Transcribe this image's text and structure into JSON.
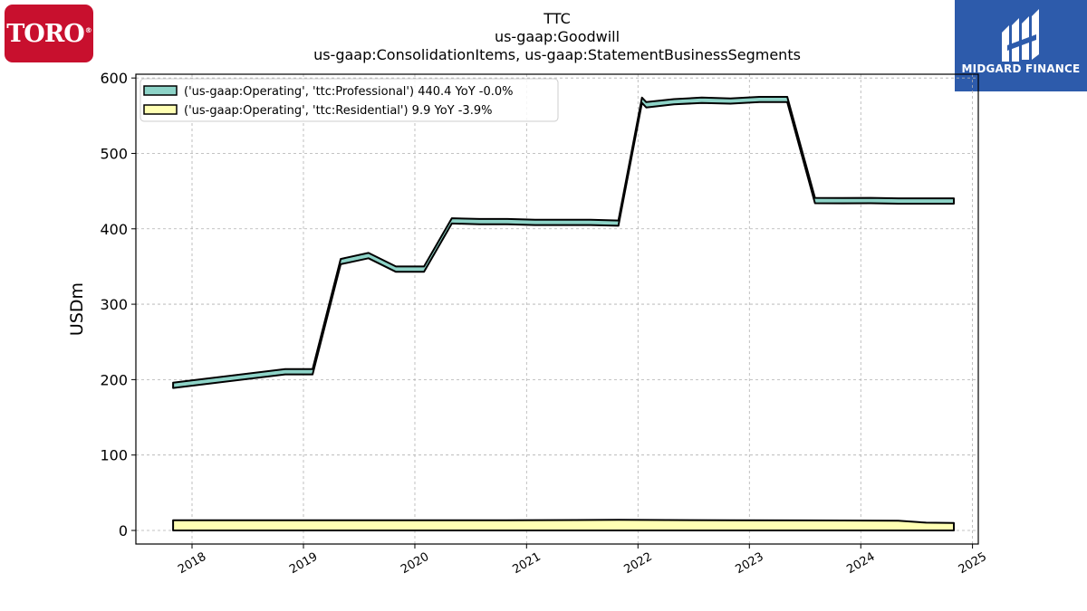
{
  "logos": {
    "left": {
      "text": "TORO",
      "mark": "®",
      "color": "#c8102e"
    },
    "right": {
      "text": "MIDGARD FINANCE",
      "color": "#2d5bab"
    }
  },
  "chart_data": {
    "type": "area",
    "title": [
      "TTC",
      "us-gaap:Goodwill",
      "us-gaap:ConsolidationItems, us-gaap:StatementBusinessSegments"
    ],
    "xlabel": "",
    "ylabel": "USDm",
    "ylim": [
      -18,
      605
    ],
    "xlim": [
      "2017-07-01",
      "2025-01-20"
    ],
    "yticks": [
      0,
      100,
      200,
      300,
      400,
      500,
      600
    ],
    "xticks": [
      "2018",
      "2019",
      "2020",
      "2021",
      "2022",
      "2023",
      "2024",
      "2025"
    ],
    "grid": true,
    "legend_position": "top-left",
    "series": [
      {
        "name": "('us-gaap:Operating', 'ttc:Professional') 440.4 YoY -0.0%",
        "fill": "#8dd3c7",
        "band": 7,
        "x": [
          "2017-10-31",
          "2018-11-02",
          "2019-01-31",
          "2019-05-03",
          "2019-08-02",
          "2019-10-31",
          "2020-01-31",
          "2020-05-01",
          "2020-07-31",
          "2020-10-30",
          "2021-01-29",
          "2021-04-30",
          "2021-07-30",
          "2021-10-29",
          "2022-01-14",
          "2022-01-28",
          "2022-04-29",
          "2022-07-29",
          "2022-10-31",
          "2023-02-03",
          "2023-05-05",
          "2023-08-04",
          "2023-11-03",
          "2024-02-02",
          "2024-05-03",
          "2024-08-02",
          "2024-11-01"
        ],
        "y": [
          196,
          214,
          214,
          360,
          368,
          350,
          350,
          414,
          413,
          413,
          412,
          412,
          412,
          411,
          574,
          568,
          572,
          574,
          573,
          575,
          575,
          441,
          440.8,
          441,
          440.4,
          440.4,
          440.4
        ]
      },
      {
        "name": "('us-gaap:Operating', 'ttc:Residential') 9.9 YoY -3.9%",
        "fill": "#ffffb3",
        "base": 0,
        "x": [
          "2017-10-31",
          "2018-11-02",
          "2019-11-01",
          "2020-10-30",
          "2021-10-29",
          "2022-10-31",
          "2023-11-03",
          "2024-05-03",
          "2024-08-02",
          "2024-11-01"
        ],
        "y": [
          13.5,
          13.5,
          13.5,
          13.5,
          14,
          13.5,
          13.2,
          13,
          10.3,
          9.9
        ]
      }
    ]
  }
}
